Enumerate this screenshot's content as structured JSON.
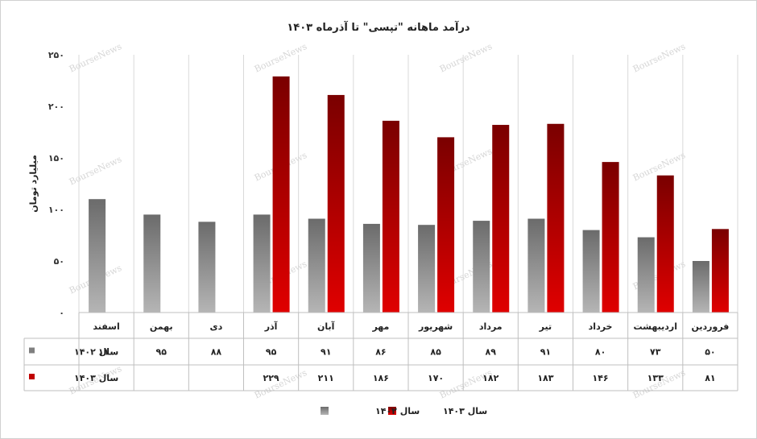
{
  "chart_data": {
    "type": "bar",
    "title": "درآمد ماهانه \"تپسی\" تا آذرماه  ۱۴۰۳",
    "ylabel": "میلیارد تومان",
    "xlabel": "",
    "ylim": [
      0,
      250
    ],
    "yticks": [
      0,
      50,
      100,
      150,
      200,
      250
    ],
    "ytick_labels": [
      "۰",
      "۵۰",
      "۱۰۰",
      "۱۵۰",
      "۲۰۰",
      "۲۵۰"
    ],
    "grid": "vertical category separators",
    "legend_position": "bottom",
    "categories": [
      "فروردین",
      "اردیبهشت",
      "خرداد",
      "تیر",
      "مرداد",
      "شهریور",
      "مهر",
      "آبان",
      "آذر",
      "دی",
      "بهمن",
      "اسفند"
    ],
    "series": [
      {
        "name": "سال ۱۴۰۲",
        "color": "#7f7f7f",
        "values": [
          50,
          73,
          80,
          91,
          89,
          85,
          86,
          91,
          95,
          88,
          95,
          110
        ],
        "labels": [
          "۵۰",
          "۷۳",
          "۸۰",
          "۹۱",
          "۸۹",
          "۸۵",
          "۸۶",
          "۹۱",
          "۹۵",
          "۸۸",
          "۹۵",
          "۱۱۰"
        ]
      },
      {
        "name": "سال ۱۴۰۳",
        "color": "#c00000",
        "values": [
          81,
          133,
          146,
          183,
          182,
          170,
          186,
          211,
          229,
          null,
          null,
          null
        ],
        "labels": [
          "۸۱",
          "۱۳۳",
          "۱۴۶",
          "۱۸۳",
          "۱۸۲",
          "۱۷۰",
          "۱۸۶",
          "۲۱۱",
          "۲۲۹",
          "",
          "",
          ""
        ]
      }
    ],
    "watermark": "BourseNews"
  }
}
